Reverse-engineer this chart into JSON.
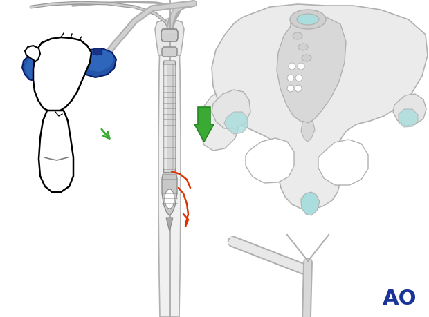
{
  "bg_color": "#ffffff",
  "green_arrow_color": "#3aaa35",
  "red_fracture_color": "#dd3300",
  "blue_handle_color": "#2255aa",
  "light_blue_color": "#4477cc",
  "bone_outline_color": "#b0b0b0",
  "bone_fill_color": "#e8e8e8",
  "pelvis_fill": "#e0e0e0",
  "teal_color": "#aadddd",
  "dark_gray": "#666666",
  "light_gray": "#cccccc",
  "ao_color": "#1a3399",
  "tool_gray": "#999999",
  "tool_light": "#d0d0d0",
  "tool_dark": "#888888",
  "tool_mid": "#b0b0b0",
  "figsize": [
    6.2,
    4.59
  ],
  "dpi": 100
}
